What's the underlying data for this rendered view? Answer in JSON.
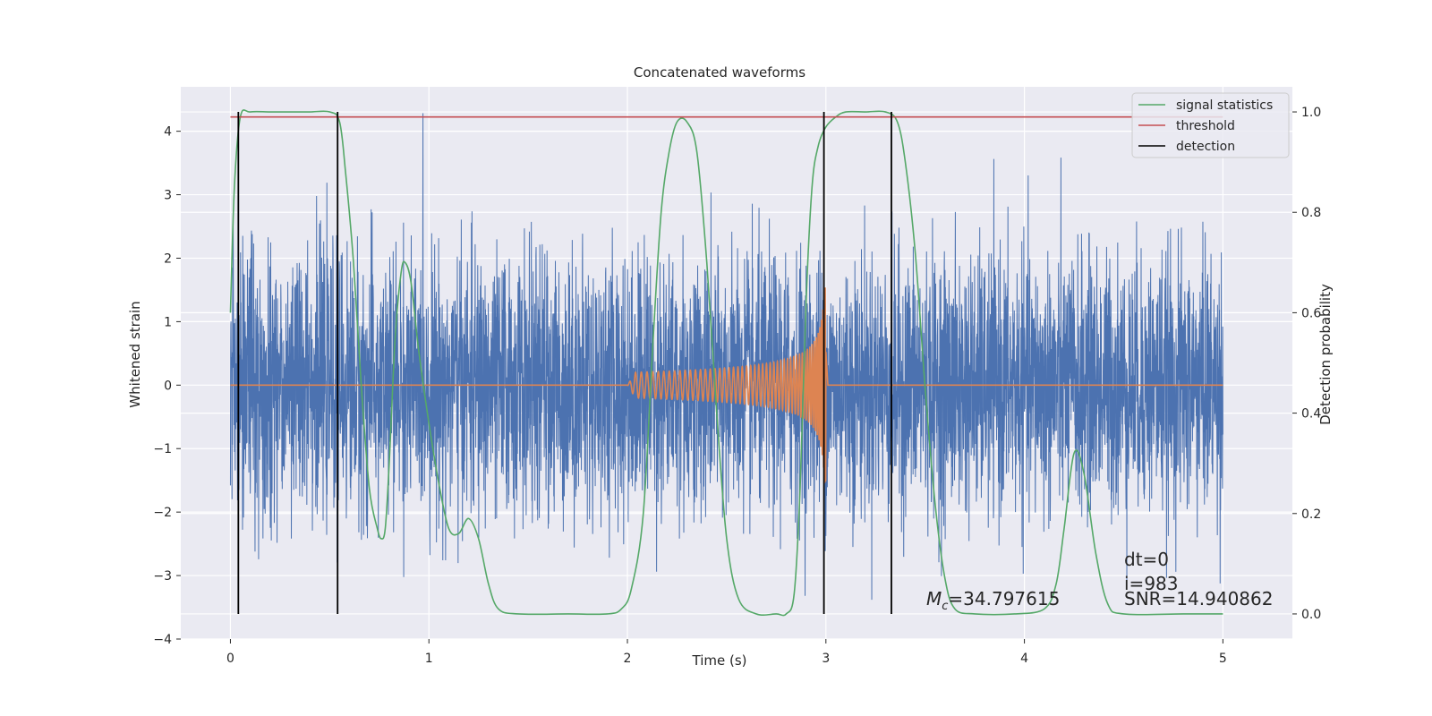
{
  "chart_data": {
    "type": "line",
    "title": "Concatenated waveforms",
    "xlabel": "Time (s)",
    "ylabel": "Whitened strain",
    "y2label": "Detection probability",
    "xlim": [
      -0.25,
      5.35
    ],
    "ylim": [
      -4,
      4.7
    ],
    "y2lim": [
      -0.05,
      1.05
    ],
    "xticks": [
      0,
      1,
      2,
      3,
      4,
      5
    ],
    "yticks": [
      -4,
      -3,
      -2,
      -1,
      0,
      1,
      2,
      3,
      4
    ],
    "y2ticks": [
      0.0,
      0.2,
      0.4,
      0.6,
      0.8,
      1.0
    ],
    "xtick_labels": [
      "0",
      "1",
      "2",
      "3",
      "4",
      "5"
    ],
    "ytick_labels": [
      "−4",
      "−3",
      "−2",
      "−1",
      "0",
      "1",
      "2",
      "3",
      "4"
    ],
    "y2tick_labels": [
      "0.0",
      "0.2",
      "0.4",
      "0.6",
      "0.8",
      "1.0"
    ],
    "grid": true,
    "legend_position": "top-right",
    "legend": [
      {
        "name": "signal statistics",
        "color": "#55a868"
      },
      {
        "name": "threshold",
        "color": "#c44e52"
      },
      {
        "name": "detection",
        "color": "#000000"
      }
    ],
    "series": [
      {
        "name": "signal statistics",
        "axis": "right",
        "color": "#55a868",
        "points": [
          [
            0.0,
            0.6
          ],
          [
            0.02,
            0.85
          ],
          [
            0.05,
            0.99
          ],
          [
            0.1,
            1.0
          ],
          [
            0.2,
            1.0
          ],
          [
            0.3,
            1.0
          ],
          [
            0.4,
            1.0
          ],
          [
            0.5,
            1.0
          ],
          [
            0.55,
            0.98
          ],
          [
            0.58,
            0.88
          ],
          [
            0.62,
            0.7
          ],
          [
            0.66,
            0.45
          ],
          [
            0.7,
            0.25
          ],
          [
            0.74,
            0.17
          ],
          [
            0.76,
            0.15
          ],
          [
            0.78,
            0.17
          ],
          [
            0.8,
            0.3
          ],
          [
            0.83,
            0.55
          ],
          [
            0.86,
            0.68
          ],
          [
            0.88,
            0.7
          ],
          [
            0.91,
            0.66
          ],
          [
            0.95,
            0.52
          ],
          [
            1.0,
            0.38
          ],
          [
            1.05,
            0.26
          ],
          [
            1.1,
            0.17
          ],
          [
            1.15,
            0.16
          ],
          [
            1.2,
            0.19
          ],
          [
            1.25,
            0.15
          ],
          [
            1.3,
            0.06
          ],
          [
            1.35,
            0.01
          ],
          [
            1.45,
            0.0
          ],
          [
            1.7,
            0.0
          ],
          [
            1.9,
            0.0
          ],
          [
            1.97,
            0.01
          ],
          [
            2.02,
            0.05
          ],
          [
            2.08,
            0.2
          ],
          [
            2.13,
            0.55
          ],
          [
            2.17,
            0.8
          ],
          [
            2.21,
            0.92
          ],
          [
            2.25,
            0.98
          ],
          [
            2.3,
            0.98
          ],
          [
            2.35,
            0.92
          ],
          [
            2.4,
            0.7
          ],
          [
            2.45,
            0.4
          ],
          [
            2.5,
            0.15
          ],
          [
            2.56,
            0.03
          ],
          [
            2.65,
            0.0
          ],
          [
            2.75,
            0.0
          ],
          [
            2.8,
            0.0
          ],
          [
            2.84,
            0.04
          ],
          [
            2.87,
            0.25
          ],
          [
            2.9,
            0.62
          ],
          [
            2.93,
            0.85
          ],
          [
            2.96,
            0.93
          ],
          [
            3.0,
            0.97
          ],
          [
            3.05,
            0.99
          ],
          [
            3.1,
            1.0
          ],
          [
            3.2,
            1.0
          ],
          [
            3.3,
            1.0
          ],
          [
            3.36,
            0.98
          ],
          [
            3.4,
            0.9
          ],
          [
            3.45,
            0.72
          ],
          [
            3.5,
            0.45
          ],
          [
            3.55,
            0.22
          ],
          [
            3.6,
            0.07
          ],
          [
            3.65,
            0.01
          ],
          [
            3.75,
            0.0
          ],
          [
            3.95,
            0.0
          ],
          [
            4.1,
            0.01
          ],
          [
            4.16,
            0.06
          ],
          [
            4.2,
            0.17
          ],
          [
            4.25,
            0.32
          ],
          [
            4.3,
            0.28
          ],
          [
            4.36,
            0.12
          ],
          [
            4.42,
            0.02
          ],
          [
            4.5,
            0.0
          ],
          [
            4.8,
            0.0
          ],
          [
            5.0,
            0.0
          ]
        ]
      },
      {
        "name": "threshold",
        "axis": "right",
        "color": "#c44e52",
        "value": 0.99,
        "x_range": [
          0,
          5
        ]
      },
      {
        "name": "detection",
        "axis": "right",
        "color": "#000000",
        "x": [
          0.04,
          0.54,
          2.99,
          3.33
        ],
        "y_range": [
          0.0,
          1.0
        ]
      },
      {
        "name": "whitened strain",
        "axis": "left",
        "color": "#4c72b0",
        "x_range": [
          0,
          5
        ],
        "envelope": [
          -3.6,
          4.4
        ]
      },
      {
        "name": "template waveform",
        "axis": "left",
        "color": "#dd8452",
        "chirp_start": 2.0,
        "chirp_end": 3.0,
        "max_amplitude": 1.55
      }
    ],
    "annotations": {
      "dt": "dt=0",
      "i": "i=983",
      "mc_symbol": "M",
      "mc_sub": "c",
      "mc_value": "=34.797615",
      "snr": "SNR=14.940862"
    }
  }
}
